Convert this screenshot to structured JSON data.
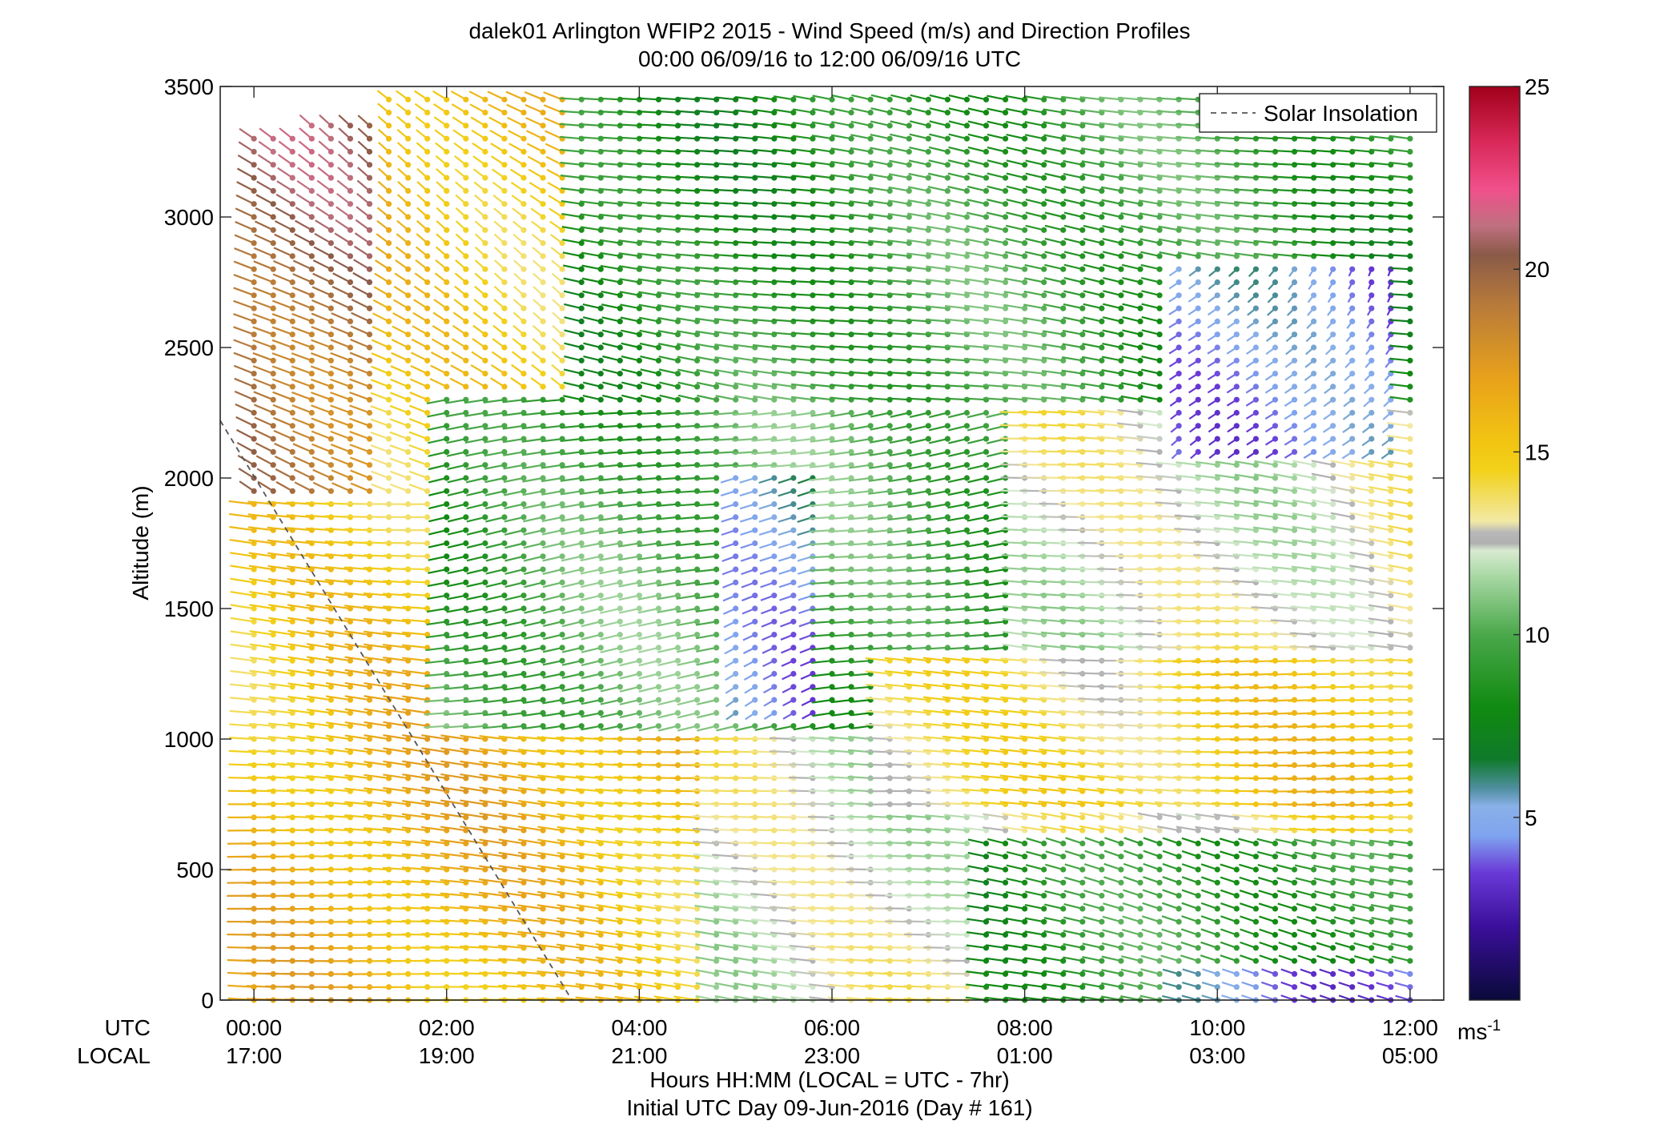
{
  "chart_data": {
    "type": "wind-barb-profile",
    "title": "dalek01 Arlington WFIP2 2015 - Wind Speed (m/s) and Direction Profiles",
    "subtitle": "00:00 06/09/16 to 12:00 06/09/16  UTC",
    "ylabel": "Altitude (m)",
    "xlabel": "Hours HH:MM  (LOCAL = UTC - 7hr)",
    "xlabel2": "Initial UTC Day 09-Jun-2016 (Day # 161)",
    "row_label_utc": "UTC",
    "row_label_local": "LOCAL",
    "xlim": [
      -0.35,
      12.35
    ],
    "ylim": [
      0,
      3500
    ],
    "yticks": [
      0,
      500,
      1000,
      1500,
      2000,
      2500,
      3000,
      3500
    ],
    "ytick_labels": [
      "0",
      "500",
      "1000",
      "1500",
      "2000",
      "2500",
      "3000",
      "3500"
    ],
    "xticks": [
      0,
      2,
      4,
      6,
      8,
      10,
      12
    ],
    "xtick_labels_utc": [
      "00:00",
      "02:00",
      "04:00",
      "06:00",
      "08:00",
      "10:00",
      "12:00"
    ],
    "xtick_labels_local": [
      "17:00",
      "19:00",
      "21:00",
      "23:00",
      "01:00",
      "03:00",
      "05:00"
    ],
    "legend": {
      "label": "Solar Insolation",
      "placement": "top-right"
    },
    "solar_insolation_line": {
      "x": [
        -0.35,
        3.3
      ],
      "y": [
        2220,
        0
      ],
      "color": "#555555",
      "style": "dashed"
    },
    "colorbar": {
      "range": [
        0,
        25
      ],
      "ticks": [
        5,
        10,
        15,
        20,
        25
      ],
      "tick_labels": [
        "5",
        "10",
        "15",
        "20",
        "25"
      ],
      "unit_label": "ms",
      "unit_superscript": "-1",
      "stops": [
        {
          "v": 0,
          "c": "#0a0a3a"
        },
        {
          "v": 2,
          "c": "#3a0f9a"
        },
        {
          "v": 3.5,
          "c": "#6a3ad8"
        },
        {
          "v": 4.5,
          "c": "#7fa4ef"
        },
        {
          "v": 5.3,
          "c": "#8ab0e8"
        },
        {
          "v": 5.8,
          "c": "#4e8e9e"
        },
        {
          "v": 6.6,
          "c": "#0f7a2a"
        },
        {
          "v": 8,
          "c": "#108a10"
        },
        {
          "v": 10,
          "c": "#4aa84a"
        },
        {
          "v": 11.6,
          "c": "#a8d8a4"
        },
        {
          "v": 12.3,
          "c": "#d8ead0"
        },
        {
          "v": 12.5,
          "c": "#b0b0b0"
        },
        {
          "v": 12.8,
          "c": "#b8b8b8"
        },
        {
          "v": 13.1,
          "c": "#f3e9a6"
        },
        {
          "v": 14.5,
          "c": "#f2d11a"
        },
        {
          "v": 15.2,
          "c": "#f2c612"
        },
        {
          "v": 17,
          "c": "#e8a21a"
        },
        {
          "v": 19,
          "c": "#b87b3a"
        },
        {
          "v": 20.4,
          "c": "#8a5a48"
        },
        {
          "v": 21.2,
          "c": "#c07080"
        },
        {
          "v": 22.2,
          "c": "#f0508a"
        },
        {
          "v": 23.5,
          "c": "#d82858"
        },
        {
          "v": 25,
          "c": "#a0001a"
        }
      ]
    },
    "grid": false,
    "sampling": {
      "dt_hours": 0.2,
      "dz_m": 50,
      "t_start": 0,
      "t_end": 12
    },
    "regions": [
      {
        "name": "upper_left_strong",
        "t": [
          0,
          1.3
        ],
        "z": [
          1900,
          3350
        ],
        "speed": 19.5,
        "dir": 215
      },
      {
        "name": "upper_left_moderate",
        "t": [
          1.3,
          3.3
        ],
        "z": [
          1950,
          3450
        ],
        "speed": 15.5,
        "dir": 215
      },
      {
        "name": "low_left_yellow_orange",
        "t": [
          0,
          4.8
        ],
        "z": [
          0,
          1900
        ],
        "speed": 15.5,
        "dir": 260
      },
      {
        "name": "mid_green_band",
        "t": [
          1.8,
          8.0
        ],
        "z": [
          1050,
          2300
        ],
        "speed": 9.5,
        "dir": 290
      },
      {
        "name": "upper_green",
        "t": [
          3.3,
          12
        ],
        "z": [
          2300,
          3450
        ],
        "speed": 9,
        "dir": 250
      },
      {
        "name": "mid_yellow_band",
        "t": [
          6.5,
          12
        ],
        "z": [
          750,
          1300
        ],
        "speed": 14.5,
        "dir": 265
      },
      {
        "name": "low_green_right",
        "t": [
          7.5,
          12
        ],
        "z": [
          0,
          600
        ],
        "speed": 8.5,
        "dir": 240
      },
      {
        "name": "weak_core",
        "t": [
          4.9,
          6.0
        ],
        "z": [
          1100,
          2000
        ],
        "speed": 4.5,
        "dir": 320
      },
      {
        "name": "weak_upper_right",
        "t": [
          9.4,
          11.8
        ],
        "z": [
          2100,
          2800
        ],
        "speed": 5,
        "dir": 340
      },
      {
        "name": "surface_weak_right",
        "t": [
          9.5,
          12
        ],
        "z": [
          0,
          100
        ],
        "speed": 4,
        "dir": 240
      }
    ]
  }
}
